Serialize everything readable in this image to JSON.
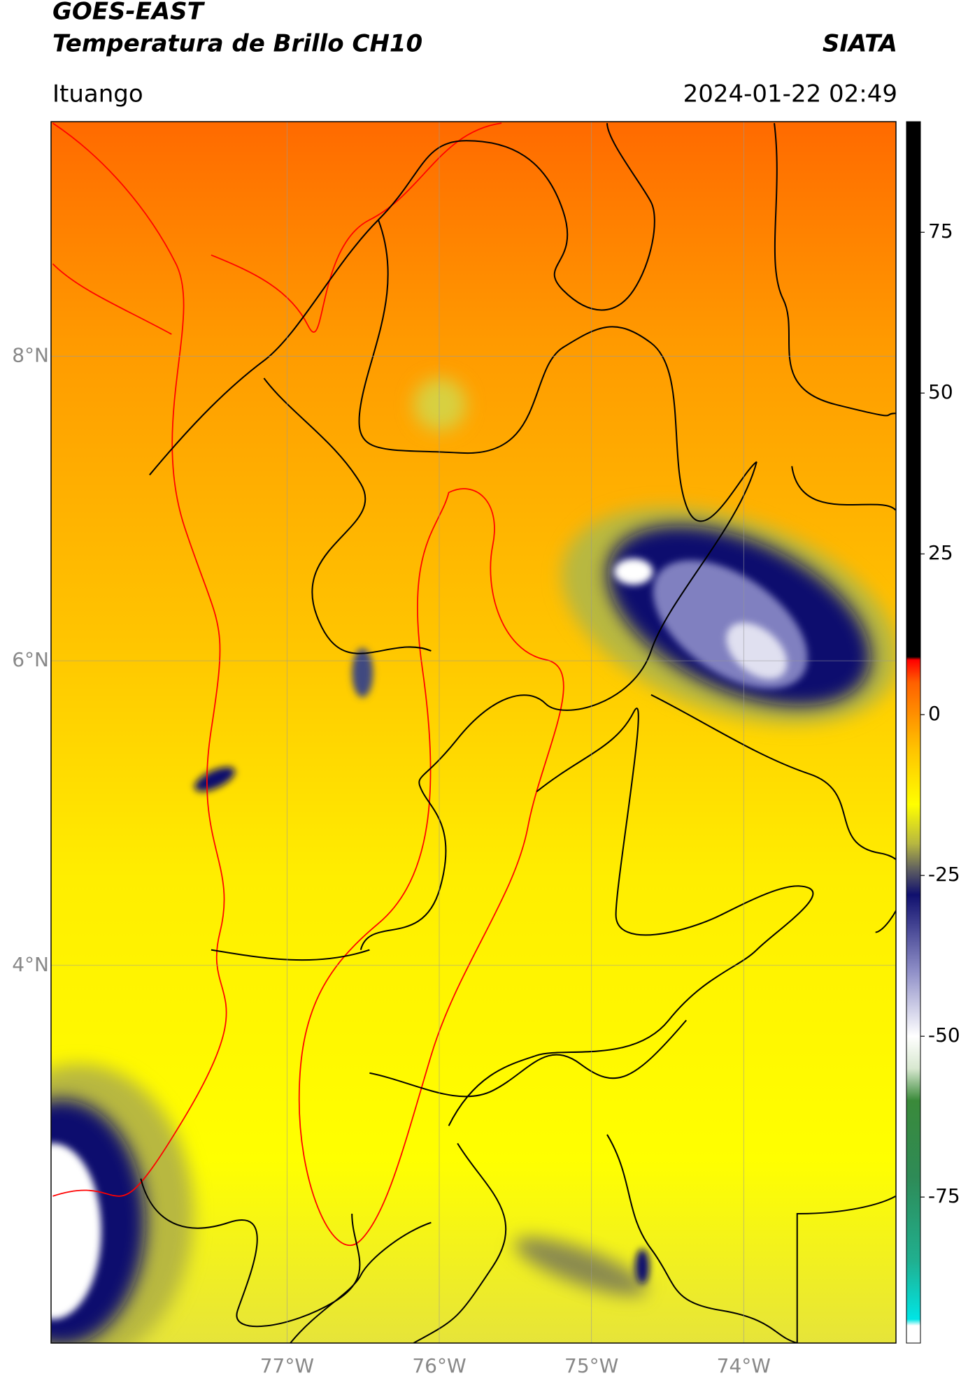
{
  "header": {
    "title": "GOES-EAST",
    "subtitle": "Temperatura de Brillo CH10",
    "source": "SIATA",
    "location": "Ituango",
    "datetime": "2024-01-22 02:49"
  },
  "map": {
    "xlim": [
      -78.55,
      -73.0
    ],
    "ylim": [
      1.52,
      9.54
    ],
    "lat_ticks": [
      {
        "value": 8,
        "label": "8°N"
      },
      {
        "value": 6,
        "label": "6°N"
      },
      {
        "value": 4,
        "label": "4°N"
      }
    ],
    "lon_ticks": [
      {
        "value": -77,
        "label": "77°W"
      },
      {
        "value": -76,
        "label": "76°W"
      },
      {
        "value": -75,
        "label": "75°W"
      },
      {
        "value": -74,
        "label": "74°W"
      }
    ],
    "grid": true
  },
  "colorbar": {
    "lim": [
      -97.7,
      92.2
    ],
    "ticks": [
      75,
      50,
      25,
      0,
      -25,
      -50,
      -75
    ],
    "colormap": [
      {
        "value": -97.7,
        "color": "#ffffff"
      },
      {
        "value": -95,
        "color": "#ffffff"
      },
      {
        "value": -94,
        "color": "#00e5e5"
      },
      {
        "value": -85,
        "color": "#20b090"
      },
      {
        "value": -72,
        "color": "#2e8b57"
      },
      {
        "value": -60,
        "color": "#3a8a3a"
      },
      {
        "value": -55,
        "color": "#d8e8d0"
      },
      {
        "value": -50,
        "color": "#ffffff"
      },
      {
        "value": -40,
        "color": "#9090c8"
      },
      {
        "value": -28,
        "color": "#10106e"
      },
      {
        "value": -24,
        "color": "#606060"
      },
      {
        "value": -20,
        "color": "#b8b840"
      },
      {
        "value": -14,
        "color": "#ffff00"
      },
      {
        "value": -5,
        "color": "#ffc000"
      },
      {
        "value": 5,
        "color": "#ff6000"
      },
      {
        "value": 8.5,
        "color": "#ff0000"
      },
      {
        "value": 9,
        "color": "#000000"
      },
      {
        "value": 92.2,
        "color": "#000000"
      }
    ]
  }
}
